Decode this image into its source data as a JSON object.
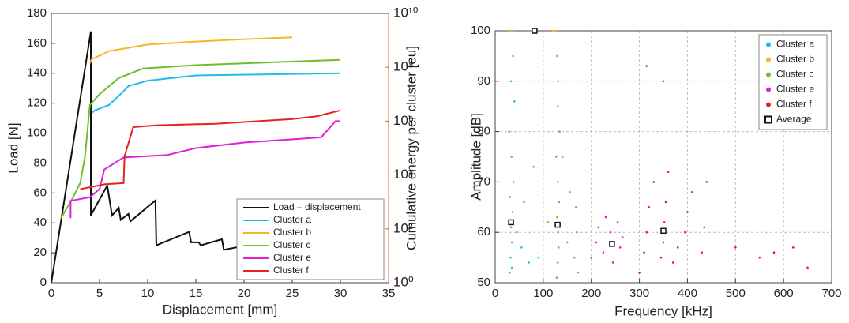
{
  "chart_data": [
    {
      "type": "line",
      "xlabel": "Displacement [mm]",
      "ylabel": "Load [N]",
      "y2label": "Cumulative energy per cluster [eu]",
      "xlim": [
        0,
        35
      ],
      "xticks": [
        0,
        5,
        10,
        15,
        20,
        25,
        30,
        35
      ],
      "ylim": [
        0,
        180
      ],
      "yticks": [
        0,
        20,
        40,
        60,
        80,
        100,
        120,
        140,
        160,
        180
      ],
      "y2lim": [
        1,
        10000000000
      ],
      "y2scale": "log",
      "y2color": "#e8602c",
      "y2ticks": [
        {
          "value": 1,
          "label": "10⁰"
        },
        {
          "value": 100,
          "label": "10²"
        },
        {
          "value": 10000,
          "label": "10⁴"
        },
        {
          "value": 1000000,
          "label": "10⁶"
        },
        {
          "value": 100000000,
          "label": "10⁸"
        },
        {
          "value": 10000000000,
          "label": "10¹⁰"
        }
      ],
      "grid": false,
      "legend": "lower right",
      "series": [
        {
          "name": "Load – displacement",
          "color": "#111111",
          "x": [
            0,
            4.1,
            4.1,
            5.8,
            6.3,
            7,
            7.2,
            8,
            8.2,
            10.8,
            10.9,
            14.3,
            14.5,
            15.3,
            15.5,
            17.7,
            17.9,
            19.5,
            19.6
          ],
          "values": [
            0,
            168,
            45,
            65,
            45,
            50,
            42,
            46,
            41,
            55,
            25,
            34,
            27,
            27,
            25,
            29,
            22,
            24,
            20
          ]
        },
        {
          "name": "Cluster a",
          "color": "#1cc0e8",
          "axis": "y2",
          "x": [
            4.2,
            4.5,
            6,
            7.5,
            8,
            10,
            15,
            30
          ],
          "values": [
            2000000,
            2500000,
            4000000,
            13000000,
            20000000,
            32000000,
            50000000,
            60000000
          ]
        },
        {
          "name": "Cluster b",
          "color": "#f5b525",
          "axis": "y2",
          "x": [
            4,
            4.2,
            6,
            10,
            15,
            20,
            25
          ],
          "values": [
            140000000,
            200000000,
            400000000,
            700000000,
            900000000,
            1100000000,
            1300000000
          ]
        },
        {
          "name": "Cluster c",
          "color": "#6cc02c",
          "axis": "y2",
          "x": [
            1,
            2,
            3,
            3.5,
            4,
            5,
            7,
            9.5,
            15,
            30
          ],
          "values": [
            250,
            1000,
            5000,
            50000,
            4000000,
            10000000,
            40000000,
            90000000,
            120000000,
            190000000
          ]
        },
        {
          "name": "Cluster e",
          "color": "#e020d8",
          "axis": "y2",
          "x": [
            2,
            2,
            4,
            5,
            5.5,
            7.5,
            12,
            15,
            20,
            28,
            29.5,
            30
          ],
          "values": [
            250,
            1100,
            1500,
            3000,
            16000,
            45000,
            55000,
            100000,
            160000,
            250000,
            1000000,
            1000000
          ]
        },
        {
          "name": "Cluster f",
          "color": "#e82020",
          "axis": "y2",
          "x": [
            3,
            4,
            5.5,
            7.5,
            7.6,
            8.5,
            11,
            17,
            25,
            27.5,
            30
          ],
          "values": [
            3000,
            3500,
            4500,
            5000,
            50000,
            600000,
            700000,
            800000,
            1200000,
            1500000,
            2500000
          ]
        }
      ]
    },
    {
      "type": "scatter",
      "xlabel": "Frequency [kHz]",
      "ylabel": "Amplitude [dB]",
      "xlim": [
        0,
        700
      ],
      "xticks": [
        0,
        100,
        200,
        300,
        400,
        500,
        600,
        700
      ],
      "ylim": [
        50,
        100
      ],
      "yticks": [
        50,
        60,
        70,
        80,
        90,
        100
      ],
      "grid": true,
      "legend": "upper right",
      "series": [
        {
          "name": "Cluster a",
          "color": "#1cc0e8",
          "x": [
            30,
            32,
            35,
            33,
            36,
            31,
            38,
            34,
            29,
            40,
            45,
            55,
            70,
            90,
            33,
            37,
            32,
            35,
            60,
            80
          ],
          "values": [
            52,
            55,
            58,
            61,
            64,
            67,
            70,
            75,
            80,
            86,
            60,
            57,
            54,
            55,
            90,
            95,
            100,
            53,
            66,
            73
          ]
        },
        {
          "name": "Cluster b",
          "color": "#f5b525",
          "x": [
            30,
            35,
            120,
            125
          ],
          "values": [
            100,
            100,
            100,
            100
          ]
        },
        {
          "name": "Cluster c",
          "color": "#6cc02c",
          "x": [
            128,
            130,
            132,
            131,
            129,
            133,
            130,
            127,
            134,
            130,
            165,
            170,
            168,
            150,
            110,
            140,
            131,
            129,
            172,
            155
          ],
          "values": [
            51,
            54,
            57,
            60,
            63,
            66,
            70,
            75,
            80,
            85,
            55,
            60,
            65,
            58,
            62,
            75,
            90,
            95,
            52,
            68
          ]
        },
        {
          "name": "Cluster e",
          "color": "#e020d8",
          "x": [
            200,
            210,
            225,
            240,
            255,
            265,
            215,
            245,
            260,
            230
          ],
          "values": [
            55,
            58,
            56,
            60,
            62,
            59,
            61,
            54,
            57,
            63
          ]
        },
        {
          "name": "Cluster f",
          "color": "#e82020",
          "x": [
            300,
            310,
            315,
            320,
            330,
            345,
            350,
            352,
            355,
            360,
            370,
            380,
            395,
            400,
            410,
            430,
            435,
            440,
            500,
            550,
            580,
            620,
            650,
            315,
            350
          ],
          "values": [
            52,
            56,
            60,
            65,
            70,
            55,
            58,
            62,
            66,
            72,
            54,
            57,
            60,
            64,
            68,
            56,
            61,
            70,
            57,
            55,
            56,
            57,
            53,
            93,
            90
          ]
        },
        {
          "name": "Average",
          "color": "#111111",
          "marker": "square",
          "x": [
            82,
            33,
            130,
            243,
            350
          ],
          "values": [
            100,
            62,
            61.5,
            57.7,
            60.3
          ]
        }
      ]
    }
  ]
}
